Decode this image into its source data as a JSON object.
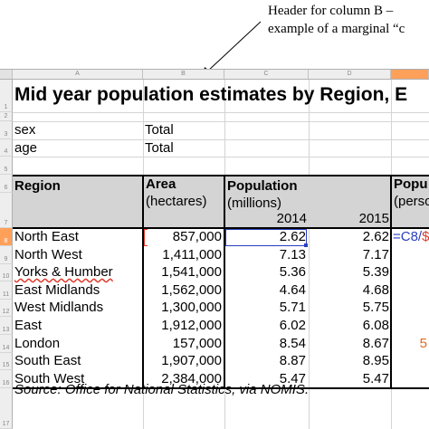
{
  "annotation": {
    "line1": "Header for column B –",
    "line2": "example of a marginal “c"
  },
  "columns": [
    {
      "letter": "A"
    },
    {
      "letter": "B"
    },
    {
      "letter": "C"
    },
    {
      "letter": "D"
    },
    {
      "letter": ""
    }
  ],
  "rows": [
    "1",
    "2",
    "3",
    "4",
    "5",
    "6",
    "7",
    "8",
    "9",
    "10",
    "11",
    "12",
    "13",
    "14",
    "15",
    "16",
    "17"
  ],
  "title": "Mid year population estimates by Region, E",
  "sex": {
    "label": "sex",
    "value": "Total"
  },
  "age": {
    "label": "age",
    "value": "Total"
  },
  "headers": {
    "region": "Region",
    "area": "Area",
    "area_unit": "(hectares)",
    "population": "Population",
    "population_unit": "(millions)",
    "year1": "2014",
    "year2": "2015",
    "popul_cut": "Popu",
    "perso_cut": "(perso"
  },
  "table": [
    {
      "region": "North East",
      "area": "857,000",
      "p2014": "2.62",
      "p2015": "2.62"
    },
    {
      "region": "North West",
      "area": "1,411,000",
      "p2014": "7.13",
      "p2015": "7.17"
    },
    {
      "region": "Yorks & Humber",
      "area": "1,541,000",
      "p2014": "5.36",
      "p2015": "5.39"
    },
    {
      "region": "East Midlands",
      "area": "1,562,000",
      "p2014": "4.64",
      "p2015": "4.68"
    },
    {
      "region": "West Midlands",
      "area": "1,300,000",
      "p2014": "5.71",
      "p2015": "5.75"
    },
    {
      "region": "East",
      "area": "1,912,000",
      "p2014": "6.02",
      "p2015": "6.08"
    },
    {
      "region": "London",
      "area": "157,000",
      "p2014": "8.54",
      "p2015": "8.67"
    },
    {
      "region": "South East",
      "area": "1,907,000",
      "p2014": "8.87",
      "p2015": "8.95"
    },
    {
      "region": "South West",
      "area": "2,384,000",
      "p2014": "5.47",
      "p2015": "5.47"
    }
  ],
  "formula": {
    "part1": "=C8/",
    "part2": "$"
  },
  "london_e_fragment": "5",
  "source": "Source: Office for National Statistics, via NOMIS.",
  "colors": {
    "selection": "#2a3fbf",
    "reference": "#e03a2a",
    "active_header": "#ffa05a",
    "header_fill": "#d4d4d4"
  }
}
